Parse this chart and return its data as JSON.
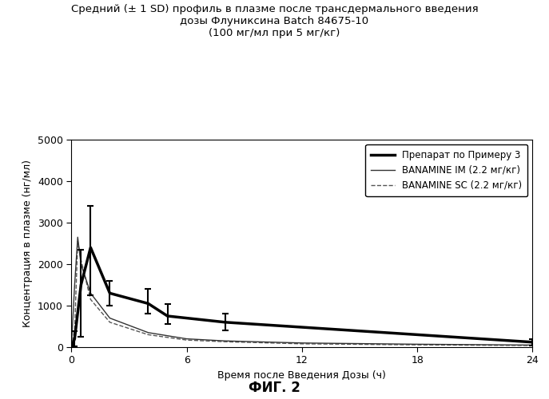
{
  "title_line1": "Средний (± 1 SD) профиль в плазме после трансдермального введения",
  "title_line2": "дозы Флуниксина Batch 84675-10",
  "title_line3": "(100 мг/мл при 5 мг/кг)",
  "xlabel": "Время после Введения Дозы (ч)",
  "ylabel": "Концентрация в плазме (нг/мл)",
  "fig_label": "ФИГ. 2",
  "legend_labels": [
    "Препарат по Примеру 3",
    "BANAMINE IM (2.2 мг/кг)",
    "BANAMINE SC (2.2 мг/кг)"
  ],
  "xlim": [
    0,
    24
  ],
  "ylim": [
    0,
    5000
  ],
  "xticks": [
    0,
    6,
    12,
    18,
    24
  ],
  "yticks": [
    0,
    1000,
    2000,
    3000,
    4000,
    5000
  ],
  "example3_x": [
    0,
    0.17,
    0.5,
    1.0,
    2.0,
    4.0,
    5.0,
    8.0,
    24.0
  ],
  "example3_y": [
    0,
    200,
    1500,
    2400,
    1300,
    1050,
    750,
    600,
    120
  ],
  "example3_yerr_lo": [
    0,
    180,
    1250,
    1150,
    300,
    250,
    200,
    200,
    80
  ],
  "example3_yerr_hi": [
    0,
    180,
    850,
    1000,
    300,
    350,
    280,
    200,
    80
  ],
  "banamine_im_x": [
    0,
    0.17,
    0.33,
    0.5,
    1.0,
    2.0,
    4.0,
    6.0,
    8.0,
    12.0,
    18.0,
    24.0
  ],
  "banamine_im_y": [
    0,
    1500,
    2650,
    2000,
    1300,
    700,
    350,
    200,
    150,
    100,
    70,
    50
  ],
  "banamine_sc_x": [
    0,
    0.17,
    0.33,
    0.5,
    1.0,
    2.0,
    4.0,
    6.0,
    8.0,
    12.0,
    18.0,
    24.0
  ],
  "banamine_sc_y": [
    0,
    400,
    2550,
    2100,
    1150,
    600,
    300,
    170,
    130,
    80,
    55,
    40
  ],
  "line_color_example3": "#000000",
  "line_color_im": "#333333",
  "line_color_sc": "#555555",
  "background_color": "#ffffff"
}
